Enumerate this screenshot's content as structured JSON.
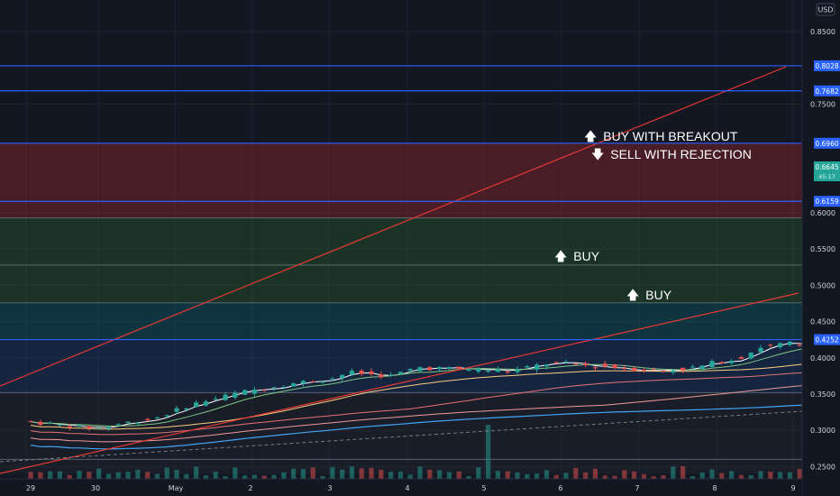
{
  "chart_data": {
    "type": "candlestick",
    "currency": "USD",
    "price_ticks": [
      "0.8500",
      "0.7500",
      "0.6000",
      "0.5500",
      "0.5000",
      "0.4500",
      "0.4000",
      "0.3500",
      "0.3000",
      "0.2500"
    ],
    "time_labels": [
      "29",
      "30",
      "May",
      "2",
      "3",
      "4",
      "5",
      "6",
      "7",
      "8",
      "9"
    ],
    "horizontal_levels": [
      0.8028,
      0.7682,
      0.696,
      0.6159,
      0.4252
    ],
    "last_price": "0.6645",
    "countdown": "45:17",
    "zones": [
      {
        "from": 0.593,
        "to": 0.696,
        "color": "#d32f2f"
      },
      {
        "from": 0.528,
        "to": 0.593,
        "color": "#2e7d32"
      },
      {
        "from": 0.476,
        "to": 0.528,
        "color": "#2e7d32"
      },
      {
        "from": 0.4252,
        "to": 0.476,
        "color": "#00838f"
      },
      {
        "from": 0.352,
        "to": 0.4252,
        "color": "#1e4b8f"
      },
      {
        "from": 0.24,
        "to": 0.352,
        "color": "#2a2e39"
      }
    ],
    "annotations": [
      {
        "arrow": "🡅",
        "text": "BUY WITH BREAKOUT"
      },
      {
        "arrow": "🡇",
        "text": "SELL WITH REJECTION"
      },
      {
        "arrow": "🡅",
        "text": "BUY"
      },
      {
        "arrow": "🡅",
        "text": "BUY"
      }
    ],
    "colors": {
      "up": "#26a69a",
      "down": "#ef5350",
      "level": "#2962ff",
      "trend": "#e53935"
    }
  }
}
